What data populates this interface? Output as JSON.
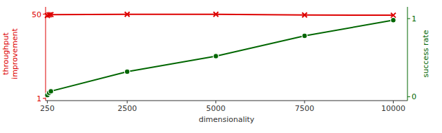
{
  "chart_data": {
    "type": "line",
    "xlabel": "dimensionality",
    "ylabel": "throughput\nimprovement",
    "y2label": "success rate",
    "x": [
      250,
      300,
      350,
      2500,
      5000,
      7500,
      10000
    ],
    "xlim": [
      200,
      10400
    ],
    "xticks": [
      250,
      2500,
      5000,
      7500,
      10000
    ],
    "log": "y",
    "ylim": [
      0.9,
      70
    ],
    "yticks": [
      1,
      50
    ],
    "y2lim": [
      -0.05,
      1.15
    ],
    "y2ticks": [
      0,
      1
    ],
    "grid": false,
    "series": [
      {
        "color": "#dd0000",
        "marker": "x",
        "values": [
          47,
          48.5,
          49,
          49.5,
          49.5,
          48,
          47.5
        ]
      },
      {
        "color": "#006600",
        "marker": "o",
        "axis": "y2",
        "values": [
          0.02,
          0.05,
          0.07,
          0.32,
          0.52,
          0.78,
          0.98
        ]
      }
    ]
  }
}
